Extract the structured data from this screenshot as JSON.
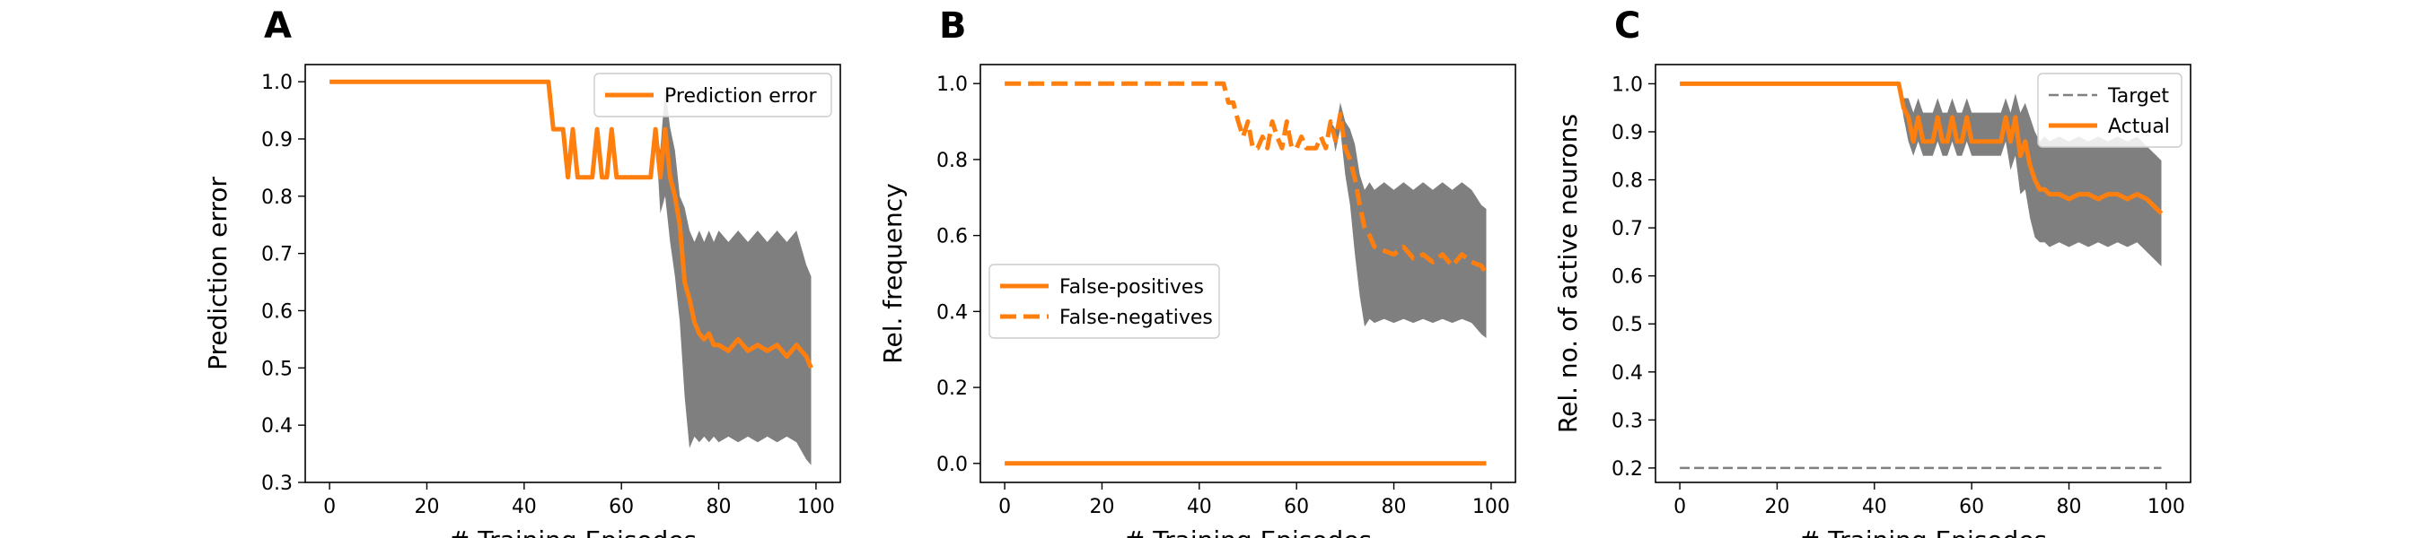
{
  "colors": {
    "accent": "#ff7f0e",
    "band": "#7f7f7f",
    "target": "#808080"
  },
  "chart_data": [
    {
      "panel": "A",
      "type": "line",
      "xlabel": "# Training Episodes",
      "ylabel": "Prediction error",
      "xlim": [
        -5,
        105
      ],
      "ylim": [
        0.3,
        1.03
      ],
      "xticks": [
        0,
        20,
        40,
        60,
        80,
        100
      ],
      "yticks": [
        0.3,
        0.4,
        0.5,
        0.6,
        0.7,
        0.8,
        0.9,
        1.0
      ],
      "legend_position": "top-right",
      "series": [
        {
          "name": "Prediction error",
          "style": "solid",
          "x": [
            0,
            45,
            46,
            47,
            48,
            49,
            50,
            51,
            52,
            53,
            54,
            55,
            56,
            57,
            58,
            59,
            60,
            61,
            62,
            63,
            64,
            65,
            66,
            67,
            68,
            69,
            70,
            71,
            72,
            73,
            74,
            75,
            76,
            77,
            78,
            79,
            80,
            82,
            84,
            86,
            88,
            90,
            92,
            94,
            96,
            98,
            99
          ],
          "y": [
            1.0,
            1.0,
            0.917,
            0.917,
            0.917,
            0.833,
            0.917,
            0.833,
            0.833,
            0.833,
            0.833,
            0.917,
            0.833,
            0.833,
            0.917,
            0.833,
            0.833,
            0.833,
            0.833,
            0.833,
            0.833,
            0.833,
            0.833,
            0.917,
            0.833,
            0.917,
            0.833,
            0.8,
            0.75,
            0.65,
            0.62,
            0.58,
            0.56,
            0.55,
            0.56,
            0.54,
            0.54,
            0.53,
            0.55,
            0.53,
            0.54,
            0.53,
            0.54,
            0.52,
            0.54,
            0.52,
            0.5
          ],
          "band_lower": [
            1.0,
            1.0,
            0.917,
            0.917,
            0.917,
            0.833,
            0.917,
            0.833,
            0.833,
            0.833,
            0.833,
            0.917,
            0.833,
            0.833,
            0.917,
            0.833,
            0.833,
            0.833,
            0.833,
            0.833,
            0.833,
            0.833,
            0.833,
            0.917,
            0.77,
            0.8,
            0.72,
            0.66,
            0.58,
            0.45,
            0.36,
            0.38,
            0.37,
            0.38,
            0.37,
            0.38,
            0.37,
            0.38,
            0.37,
            0.38,
            0.37,
            0.38,
            0.37,
            0.38,
            0.37,
            0.34,
            0.33
          ],
          "band_upper": [
            1.0,
            1.0,
            0.917,
            0.917,
            0.917,
            0.833,
            0.917,
            0.833,
            0.833,
            0.833,
            0.833,
            0.917,
            0.833,
            0.833,
            0.917,
            0.833,
            0.833,
            0.833,
            0.833,
            0.833,
            0.833,
            0.833,
            0.833,
            0.917,
            0.88,
            0.99,
            0.92,
            0.88,
            0.8,
            0.78,
            0.74,
            0.72,
            0.74,
            0.72,
            0.74,
            0.72,
            0.74,
            0.72,
            0.74,
            0.72,
            0.74,
            0.72,
            0.74,
            0.72,
            0.74,
            0.68,
            0.66
          ]
        }
      ]
    },
    {
      "panel": "B",
      "type": "line",
      "xlabel": "# Training Episodes",
      "ylabel": "Rel. frequency",
      "xlim": [
        -5,
        105
      ],
      "ylim": [
        -0.05,
        1.05
      ],
      "xticks": [
        0,
        20,
        40,
        60,
        80,
        100
      ],
      "yticks": [
        0.0,
        0.2,
        0.4,
        0.6,
        0.8,
        1.0
      ],
      "legend_position": "center-left",
      "series": [
        {
          "name": "False-positives",
          "style": "solid",
          "x": [
            0,
            99
          ],
          "y": [
            0.0,
            0.0
          ]
        },
        {
          "name": "False-negatives",
          "style": "dashed",
          "x": [
            0,
            45,
            46,
            47,
            48,
            49,
            50,
            51,
            52,
            53,
            54,
            55,
            56,
            57,
            58,
            59,
            60,
            61,
            62,
            63,
            64,
            65,
            66,
            67,
            68,
            69,
            70,
            71,
            72,
            73,
            74,
            75,
            76,
            78,
            80,
            82,
            84,
            86,
            88,
            90,
            92,
            94,
            96,
            98,
            99
          ],
          "y": [
            1.0,
            1.0,
            0.95,
            0.95,
            0.9,
            0.86,
            0.9,
            0.83,
            0.83,
            0.86,
            0.83,
            0.9,
            0.86,
            0.83,
            0.9,
            0.83,
            0.83,
            0.86,
            0.83,
            0.83,
            0.83,
            0.86,
            0.83,
            0.9,
            0.85,
            0.92,
            0.83,
            0.8,
            0.75,
            0.68,
            0.62,
            0.6,
            0.57,
            0.56,
            0.55,
            0.57,
            0.54,
            0.55,
            0.53,
            0.55,
            0.52,
            0.55,
            0.53,
            0.52,
            0.5
          ],
          "band_lower": [
            1.0,
            1.0,
            0.95,
            0.95,
            0.9,
            0.86,
            0.9,
            0.83,
            0.83,
            0.86,
            0.83,
            0.9,
            0.86,
            0.83,
            0.9,
            0.83,
            0.83,
            0.86,
            0.83,
            0.83,
            0.83,
            0.86,
            0.83,
            0.9,
            0.82,
            0.88,
            0.76,
            0.68,
            0.55,
            0.44,
            0.36,
            0.38,
            0.37,
            0.38,
            0.37,
            0.38,
            0.37,
            0.38,
            0.37,
            0.38,
            0.37,
            0.38,
            0.37,
            0.34,
            0.33
          ],
          "band_upper": [
            1.0,
            1.0,
            0.95,
            0.95,
            0.9,
            0.86,
            0.9,
            0.83,
            0.83,
            0.86,
            0.83,
            0.9,
            0.86,
            0.83,
            0.9,
            0.83,
            0.83,
            0.86,
            0.83,
            0.83,
            0.83,
            0.86,
            0.83,
            0.9,
            0.88,
            0.95,
            0.9,
            0.88,
            0.84,
            0.76,
            0.72,
            0.74,
            0.72,
            0.74,
            0.72,
            0.74,
            0.72,
            0.74,
            0.72,
            0.74,
            0.72,
            0.74,
            0.72,
            0.68,
            0.67
          ]
        }
      ]
    },
    {
      "panel": "C",
      "type": "line",
      "xlabel": "# Training Episodes",
      "ylabel": "Rel. no. of active neurons",
      "xlim": [
        -5,
        105
      ],
      "ylim": [
        0.17,
        1.04
      ],
      "xticks": [
        0,
        20,
        40,
        60,
        80,
        100
      ],
      "yticks": [
        0.2,
        0.3,
        0.4,
        0.5,
        0.6,
        0.7,
        0.8,
        0.9,
        1.0
      ],
      "legend_position": "top-right",
      "series": [
        {
          "name": "Target",
          "style": "dashed-thin",
          "x": [
            0,
            99
          ],
          "y": [
            0.2,
            0.2
          ]
        },
        {
          "name": "Actual",
          "style": "solid",
          "x": [
            0,
            45,
            46,
            47,
            48,
            49,
            50,
            51,
            52,
            53,
            54,
            55,
            56,
            57,
            58,
            59,
            60,
            61,
            62,
            63,
            64,
            65,
            66,
            67,
            68,
            69,
            70,
            71,
            72,
            73,
            74,
            75,
            76,
            78,
            80,
            82,
            84,
            86,
            88,
            90,
            92,
            94,
            96,
            98,
            99
          ],
          "y": [
            1.0,
            1.0,
            0.95,
            0.93,
            0.88,
            0.93,
            0.88,
            0.88,
            0.88,
            0.93,
            0.88,
            0.88,
            0.93,
            0.88,
            0.88,
            0.93,
            0.88,
            0.88,
            0.88,
            0.88,
            0.88,
            0.88,
            0.88,
            0.93,
            0.88,
            0.93,
            0.85,
            0.88,
            0.83,
            0.8,
            0.78,
            0.78,
            0.77,
            0.77,
            0.76,
            0.77,
            0.77,
            0.76,
            0.77,
            0.77,
            0.76,
            0.77,
            0.76,
            0.74,
            0.73
          ],
          "band_lower": [
            1.0,
            1.0,
            0.93,
            0.88,
            0.85,
            0.88,
            0.85,
            0.85,
            0.85,
            0.88,
            0.85,
            0.85,
            0.88,
            0.85,
            0.85,
            0.88,
            0.85,
            0.85,
            0.85,
            0.85,
            0.85,
            0.85,
            0.85,
            0.88,
            0.82,
            0.85,
            0.77,
            0.78,
            0.72,
            0.68,
            0.67,
            0.67,
            0.66,
            0.67,
            0.66,
            0.67,
            0.66,
            0.67,
            0.66,
            0.67,
            0.66,
            0.67,
            0.65,
            0.63,
            0.62
          ],
          "band_upper": [
            1.0,
            1.0,
            0.97,
            0.97,
            0.94,
            0.97,
            0.94,
            0.94,
            0.94,
            0.97,
            0.94,
            0.94,
            0.97,
            0.94,
            0.94,
            0.97,
            0.94,
            0.94,
            0.94,
            0.94,
            0.94,
            0.94,
            0.94,
            0.97,
            0.94,
            0.98,
            0.94,
            0.96,
            0.93,
            0.9,
            0.88,
            0.89,
            0.88,
            0.89,
            0.88,
            0.89,
            0.88,
            0.89,
            0.88,
            0.89,
            0.88,
            0.89,
            0.87,
            0.85,
            0.84
          ]
        }
      ]
    }
  ]
}
